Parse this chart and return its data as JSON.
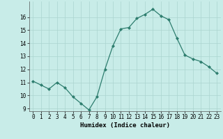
{
  "x": [
    0,
    1,
    2,
    3,
    4,
    5,
    6,
    7,
    8,
    9,
    10,
    11,
    12,
    13,
    14,
    15,
    16,
    17,
    18,
    19,
    20,
    21,
    22,
    23
  ],
  "y": [
    11.1,
    10.8,
    10.5,
    11.0,
    10.6,
    9.9,
    9.4,
    8.9,
    9.9,
    12.0,
    13.8,
    15.1,
    15.2,
    15.9,
    16.2,
    16.6,
    16.1,
    15.8,
    14.4,
    13.1,
    12.8,
    12.6,
    12.2,
    11.7
  ],
  "xlabel": "Humidex (Indice chaleur)",
  "ylim": [
    9,
    17
  ],
  "xlim": [
    -0.5,
    23.5
  ],
  "yticks": [
    9,
    10,
    11,
    12,
    13,
    14,
    15,
    16
  ],
  "xticks": [
    0,
    1,
    2,
    3,
    4,
    5,
    6,
    7,
    8,
    9,
    10,
    11,
    12,
    13,
    14,
    15,
    16,
    17,
    18,
    19,
    20,
    21,
    22,
    23
  ],
  "line_color": "#2d7d6e",
  "marker_color": "#2d7d6e",
  "bg_color": "#c8ece8",
  "grid_color": "#aad4cf",
  "xlabel_fontsize": 6.5,
  "tick_fontsize": 5.5
}
